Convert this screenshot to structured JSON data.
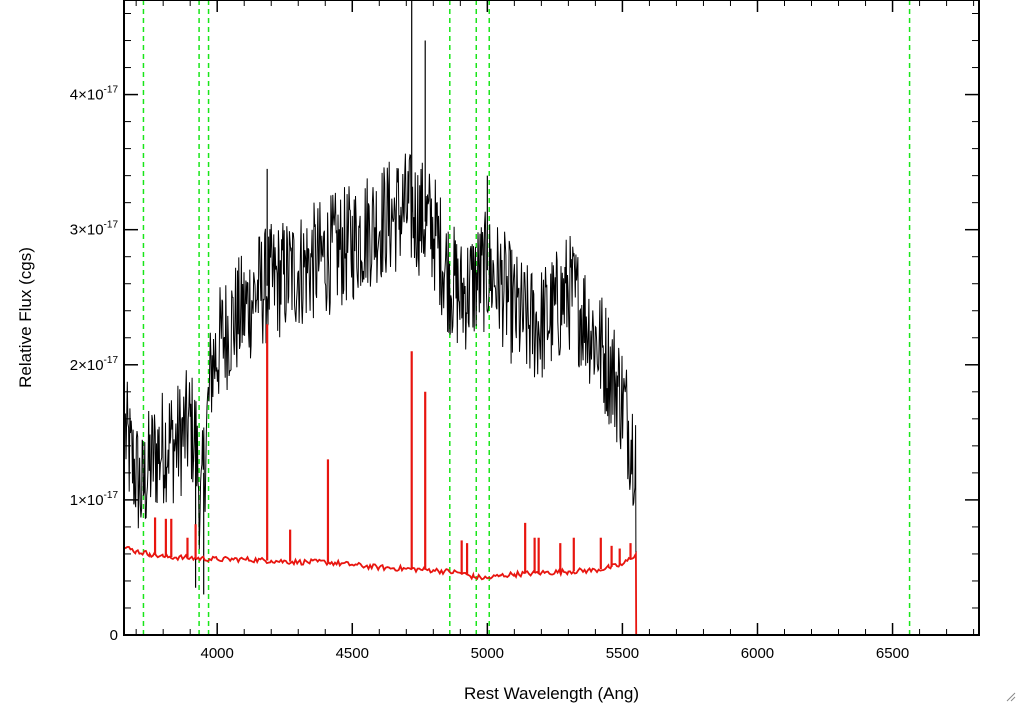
{
  "chart_data": {
    "type": "line",
    "title": "",
    "xlabel": "Rest Wavelength (Ang)",
    "ylabel": "Relative Flux (cgs)",
    "xlim": [
      3655,
      6820
    ],
    "ylim": [
      0,
      4.7e-17
    ],
    "x_ticks": [
      4000,
      4500,
      5000,
      5500,
      6000,
      6500
    ],
    "x_tick_labels": [
      "4000",
      "4500",
      "5000",
      "5500",
      "6000",
      "6500"
    ],
    "y_ticks": [
      0,
      1e-17,
      2e-17,
      3e-17,
      4e-17
    ],
    "y_tick_labels": [
      {
        "mantissa": "0",
        "exponent": ""
      },
      {
        "mantissa": "1×10",
        "exponent": "-17"
      },
      {
        "mantissa": "2×10",
        "exponent": "-17"
      },
      {
        "mantissa": "3×10",
        "exponent": "-17"
      },
      {
        "mantissa": "4×10",
        "exponent": "-17"
      }
    ],
    "grid": false,
    "colors": {
      "observed": "#000000",
      "model": "#e8150f",
      "markers": "#19e619"
    },
    "vertical_markers": [
      3727,
      3933,
      3968,
      4861,
      4959,
      5007,
      6563
    ],
    "series": [
      {
        "role": "observed spectrum (black)",
        "x": [
          3660,
          3680,
          3700,
          3720,
          3740,
          3760,
          3780,
          3800,
          3820,
          3840,
          3860,
          3880,
          3900,
          3920,
          3940,
          3960,
          3980,
          4000,
          4020,
          4050,
          4100,
          4150,
          4200,
          4250,
          4300,
          4350,
          4400,
          4450,
          4500,
          4550,
          4600,
          4650,
          4700,
          4750,
          4800,
          4850,
          4900,
          4950,
          5000,
          5050,
          5100,
          5150,
          5200,
          5250,
          5300,
          5350,
          5400,
          5450,
          5500,
          5540,
          5550
        ],
        "y": [
          1.5e-17,
          1.3e-17,
          1.2e-17,
          1.05e-17,
          1.2e-17,
          1.3e-17,
          1.35e-17,
          1.4e-17,
          1.45e-17,
          1.4e-17,
          1.45e-17,
          1.5e-17,
          1.55e-17,
          1.45e-17,
          9e-18,
          1.5e-17,
          2e-17,
          2.1e-17,
          2.2e-17,
          2.3e-17,
          2.4e-17,
          2.55e-17,
          2.6e-17,
          2.65e-17,
          2.7e-17,
          2.75e-17,
          2.8e-17,
          2.85e-17,
          2.9e-17,
          3e-17,
          3.05e-17,
          3.1e-17,
          3.15e-17,
          3.1e-17,
          3e-17,
          2.7e-17,
          2.5e-17,
          2.6e-17,
          2.7e-17,
          2.6e-17,
          2.4e-17,
          2.3e-17,
          2.3e-17,
          2.4e-17,
          2.55e-17,
          2.4e-17,
          2.2e-17,
          2e-17,
          1.75e-17,
          1.4e-17,
          1.5e-17
        ],
        "spikes": [
          {
            "x": 4185,
            "y": 3.45e-17
          },
          {
            "x": 4720,
            "y": 4.7e-17
          },
          {
            "x": 4770,
            "y": 4.4e-17
          },
          {
            "x": 5000,
            "y": 3.4e-17
          },
          {
            "x": 3950,
            "y": 3e-18
          },
          {
            "x": 3920,
            "y": 3.5e-18
          }
        ]
      },
      {
        "role": "model spectrum (red)",
        "x": [
          3655,
          3700,
          3750,
          3800,
          3900,
          4000,
          4100,
          4200,
          4300,
          4400,
          4500,
          4600,
          4700,
          4800,
          4900,
          4950,
          5000,
          5050,
          5100,
          5200,
          5300,
          5400,
          5450,
          5500,
          5550,
          5551,
          5600,
          6000,
          6500,
          6820
        ],
        "y": [
          6.5e-18,
          6.2e-18,
          6e-18,
          5.8e-18,
          5.7e-18,
          5.6e-18,
          5.6e-18,
          5.5e-18,
          5.4e-18,
          5.4e-18,
          5.2e-18,
          5e-18,
          4.9e-18,
          4.8e-18,
          4.6e-18,
          4.3e-18,
          4.2e-18,
          4.4e-18,
          4.5e-18,
          4.6e-18,
          4.7e-18,
          4.8e-18,
          5e-18,
          5.2e-18,
          6e-18,
          0,
          0,
          0,
          0,
          0
        ],
        "lines": [
          {
            "x": 3770,
            "y": 8.7e-18
          },
          {
            "x": 3810,
            "y": 8.6e-18
          },
          {
            "x": 3830,
            "y": 8.6e-18
          },
          {
            "x": 3890,
            "y": 7.2e-18
          },
          {
            "x": 3920,
            "y": 8.2e-18
          },
          {
            "x": 4185,
            "y": 2.3e-17
          },
          {
            "x": 4270,
            "y": 7.8e-18
          },
          {
            "x": 4410,
            "y": 1.3e-17
          },
          {
            "x": 4720,
            "y": 2.1e-17
          },
          {
            "x": 4770,
            "y": 1.8e-17
          },
          {
            "x": 4905,
            "y": 7e-18
          },
          {
            "x": 4925,
            "y": 6.8e-18
          },
          {
            "x": 5140,
            "y": 8.3e-18
          },
          {
            "x": 5175,
            "y": 7.2e-18
          },
          {
            "x": 5190,
            "y": 7.2e-18
          },
          {
            "x": 5270,
            "y": 6.8e-18
          },
          {
            "x": 5320,
            "y": 7.2e-18
          },
          {
            "x": 5420,
            "y": 7.2e-18
          },
          {
            "x": 5460,
            "y": 6.6e-18
          },
          {
            "x": 5490,
            "y": 6.4e-18
          },
          {
            "x": 5530,
            "y": 6.8e-18
          }
        ]
      }
    ]
  }
}
